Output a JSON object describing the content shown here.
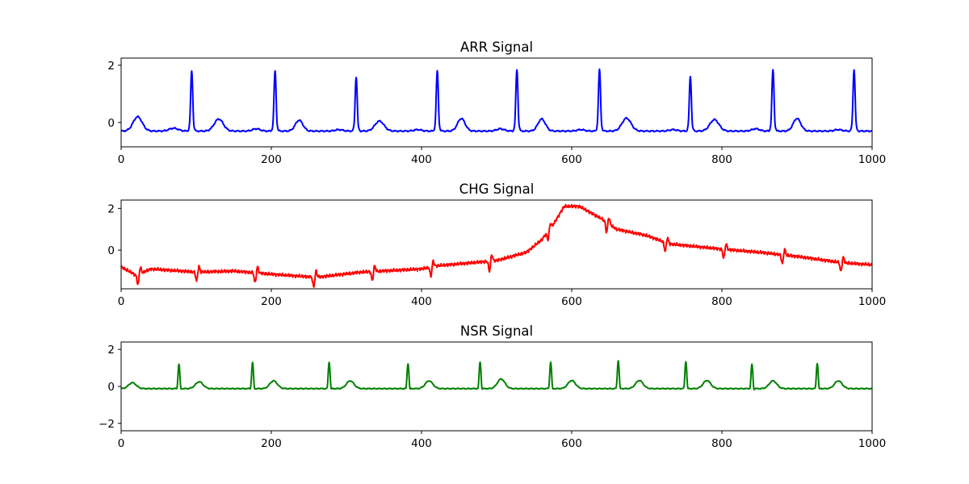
{
  "chart_data": [
    {
      "type": "line",
      "title": "ARR Signal",
      "color": "#0000ff",
      "xlim": [
        0,
        1000
      ],
      "ylim": [
        -0.85,
        2.25
      ],
      "xticks": [
        0,
        200,
        400,
        600,
        800,
        1000
      ],
      "yticks": [
        0,
        2
      ],
      "ytick_labels": [
        "0",
        "2"
      ],
      "series": [
        {
          "kind": "beats",
          "baseline": -0.3,
          "beats": [
            {
              "t": 22,
              "v": 0.2,
              "w": 6
            },
            {
              "t": 70,
              "v": -0.2,
              "w": 6
            },
            {
              "t": 94,
              "v": 1.8,
              "w": 1.6
            },
            {
              "t": 130,
              "v": 0.12,
              "w": 6
            },
            {
              "t": 180,
              "v": -0.22,
              "w": 5
            },
            {
              "t": 205,
              "v": 1.8,
              "w": 1.6
            },
            {
              "t": 237,
              "v": 0.08,
              "w": 5
            },
            {
              "t": 290,
              "v": -0.25,
              "w": 5
            },
            {
              "t": 313,
              "v": 1.6,
              "w": 1.6
            },
            {
              "t": 344,
              "v": 0.05,
              "w": 6
            },
            {
              "t": 395,
              "v": -0.25,
              "w": 5
            },
            {
              "t": 421,
              "v": 1.8,
              "w": 1.6
            },
            {
              "t": 453,
              "v": 0.14,
              "w": 5
            },
            {
              "t": 505,
              "v": -0.22,
              "w": 5
            },
            {
              "t": 527,
              "v": 1.85,
              "w": 1.6
            },
            {
              "t": 560,
              "v": 0.12,
              "w": 5
            },
            {
              "t": 612,
              "v": -0.25,
              "w": 5
            },
            {
              "t": 637,
              "v": 1.85,
              "w": 1.6
            },
            {
              "t": 673,
              "v": 0.15,
              "w": 6
            },
            {
              "t": 735,
              "v": -0.25,
              "w": 5
            },
            {
              "t": 758,
              "v": 1.62,
              "w": 1.6
            },
            {
              "t": 790,
              "v": 0.1,
              "w": 6
            },
            {
              "t": 845,
              "v": -0.22,
              "w": 5
            },
            {
              "t": 868,
              "v": 1.85,
              "w": 1.6
            },
            {
              "t": 900,
              "v": 0.14,
              "w": 5
            },
            {
              "t": 955,
              "v": -0.25,
              "w": 5
            },
            {
              "t": 976,
              "v": 1.85,
              "w": 1.6
            }
          ]
        }
      ]
    },
    {
      "type": "line",
      "title": "CHG Signal",
      "color": "#ff0000",
      "xlim": [
        0,
        1000
      ],
      "ylim": [
        -1.85,
        2.4
      ],
      "xticks": [
        0,
        200,
        400,
        600,
        800,
        1000
      ],
      "yticks": [
        0,
        2
      ],
      "ytick_labels": [
        "0",
        "2"
      ],
      "series": [
        {
          "kind": "drift",
          "trend": [
            [
              0,
              -0.8
            ],
            [
              10,
              -1.0
            ],
            [
              20,
              -1.2
            ],
            [
              40,
              -0.9
            ],
            [
              100,
              -1.05
            ],
            [
              150,
              -1.0
            ],
            [
              200,
              -1.15
            ],
            [
              260,
              -1.3
            ],
            [
              320,
              -1.05
            ],
            [
              400,
              -0.9
            ],
            [
              420,
              -0.75
            ],
            [
              500,
              -0.5
            ],
            [
              540,
              -0.1
            ],
            [
              560,
              0.5
            ],
            [
              575,
              1.2
            ],
            [
              590,
              2.1
            ],
            [
              610,
              2.1
            ],
            [
              640,
              1.5
            ],
            [
              660,
              1.0
            ],
            [
              700,
              0.7
            ],
            [
              730,
              0.3
            ],
            [
              800,
              0.05
            ],
            [
              850,
              -0.1
            ],
            [
              900,
              -0.3
            ],
            [
              960,
              -0.6
            ],
            [
              1000,
              -0.7
            ]
          ],
          "spikes": [
            [
              24,
              0.9
            ],
            [
              102,
              0.8
            ],
            [
              180,
              0.9
            ],
            [
              258,
              0.9
            ],
            [
              336,
              0.8
            ],
            [
              414,
              0.8
            ],
            [
              492,
              0.9
            ],
            [
              570,
              0.7
            ],
            [
              648,
              0.9
            ],
            [
              726,
              0.8
            ],
            [
              804,
              0.8
            ],
            [
              882,
              0.8
            ],
            [
              960,
              0.8
            ]
          ]
        }
      ]
    },
    {
      "type": "line",
      "title": "NSR Signal",
      "color": "#008000",
      "xlim": [
        0,
        1000
      ],
      "ylim": [
        -2.4,
        2.4
      ],
      "xticks": [
        0,
        200,
        400,
        600,
        800,
        1000
      ],
      "yticks": [
        -2,
        0,
        2
      ],
      "ytick_labels": [
        "−2",
        "0",
        "2"
      ],
      "series": [
        {
          "kind": "beats",
          "baseline": -0.12,
          "beats": [
            {
              "t": 15,
              "v": 0.2,
              "w": 5
            },
            {
              "t": 77,
              "v": 1.2,
              "w": 1.4
            },
            {
              "t": 104,
              "v": 0.25,
              "w": 5
            },
            {
              "t": 175,
              "v": 1.3,
              "w": 1.4
            },
            {
              "t": 203,
              "v": 0.3,
              "w": 5
            },
            {
              "t": 277,
              "v": 1.32,
              "w": 1.4
            },
            {
              "t": 305,
              "v": 0.3,
              "w": 5
            },
            {
              "t": 382,
              "v": 1.25,
              "w": 1.4
            },
            {
              "t": 410,
              "v": 0.3,
              "w": 5
            },
            {
              "t": 478,
              "v": 1.32,
              "w": 1.4
            },
            {
              "t": 506,
              "v": 0.4,
              "w": 5
            },
            {
              "t": 572,
              "v": 1.32,
              "w": 1.4
            },
            {
              "t": 600,
              "v": 0.32,
              "w": 5
            },
            {
              "t": 662,
              "v": 1.4,
              "w": 1.4
            },
            {
              "t": 690,
              "v": 0.32,
              "w": 5
            },
            {
              "t": 752,
              "v": 1.35,
              "w": 1.4
            },
            {
              "t": 780,
              "v": 0.32,
              "w": 5
            },
            {
              "t": 840,
              "v": 1.2,
              "w": 1.4
            },
            {
              "t": 868,
              "v": 0.3,
              "w": 5
            },
            {
              "t": 927,
              "v": 1.25,
              "w": 1.4
            },
            {
              "t": 955,
              "v": 0.3,
              "w": 5
            }
          ]
        }
      ]
    }
  ]
}
